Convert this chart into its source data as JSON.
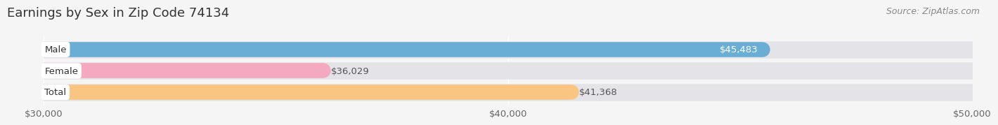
{
  "title": "Earnings by Sex in Zip Code 74134",
  "source": "Source: ZipAtlas.com",
  "categories": [
    "Male",
    "Female",
    "Total"
  ],
  "values": [
    45483,
    36029,
    41368
  ],
  "bar_colors": [
    "#6aaed6",
    "#f4a9c0",
    "#f9c580"
  ],
  "background_color": "#f5f5f5",
  "bar_bg_color": "#e4e4e8",
  "xmin": 30000,
  "xmax": 50000,
  "xticks": [
    30000,
    40000,
    50000
  ],
  "xtick_labels": [
    "$30,000",
    "$40,000",
    "$50,000"
  ],
  "title_fontsize": 13,
  "tick_fontsize": 9.5,
  "label_fontsize": 9.5,
  "value_fontsize": 9.5,
  "source_fontsize": 9
}
